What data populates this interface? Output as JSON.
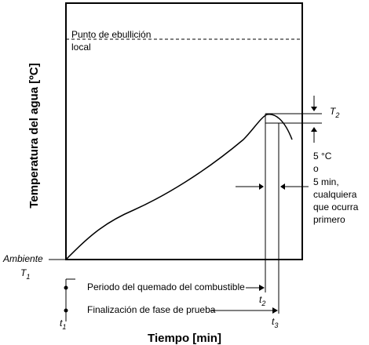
{
  "diagram": {
    "y_axis_title": "Temperatura del agua [ºC]",
    "x_axis_title": "Tiempo [min]",
    "boiling_label_line1": "Punto de ebullición",
    "boiling_label_line2": "local",
    "ambient_label": "Ambiente",
    "t1_left_main": "T",
    "t1_left_sub": "1",
    "t2_right_main": "T",
    "t2_right_sub": "2",
    "criterion_lines": [
      "5 °C",
      "o",
      "5 min,",
      "cualquiera",
      "que ocurra",
      "primero"
    ],
    "burn_period_label": "Periodo del quemado del combustible",
    "test_end_label": "Finalización de fase de prueba",
    "t1_bottom_main": "t",
    "t1_bottom_sub": "1",
    "t2_bottom_main": "t",
    "t2_bottom_sub": "2",
    "t3_bottom_main": "t",
    "t3_bottom_sub": "3"
  }
}
